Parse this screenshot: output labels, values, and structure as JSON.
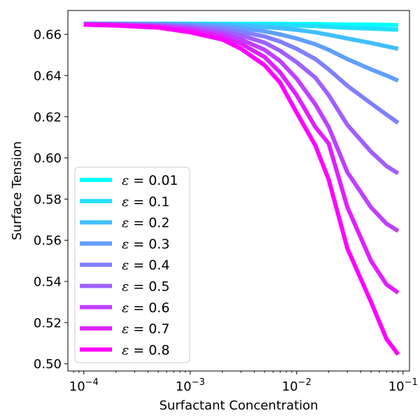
{
  "chart_data": {
    "type": "line",
    "title": "",
    "xlabel": "Surfactant Concentration",
    "ylabel": "Surface Tension",
    "xscale": "log",
    "xlim": [
      7.08e-05,
      0.115
    ],
    "ylim": [
      0.4965,
      0.6716
    ],
    "x_ticks": [
      {
        "value": 0.0001,
        "base": "10",
        "exp": "−4"
      },
      {
        "value": 0.001,
        "base": "10",
        "exp": "−3"
      },
      {
        "value": 0.01,
        "base": "10",
        "exp": "−2"
      },
      {
        "value": 0.1,
        "base": "10",
        "exp": "−1"
      }
    ],
    "y_ticks": [
      {
        "value": 0.5,
        "label": "0.50"
      },
      {
        "value": 0.52,
        "label": "0.52"
      },
      {
        "value": 0.54,
        "label": "0.54"
      },
      {
        "value": 0.56,
        "label": "0.56"
      },
      {
        "value": 0.58,
        "label": "0.58"
      },
      {
        "value": 0.6,
        "label": "0.60"
      },
      {
        "value": 0.62,
        "label": "0.62"
      },
      {
        "value": 0.64,
        "label": "0.64"
      },
      {
        "value": 0.66,
        "label": "0.66"
      }
    ],
    "grid": false,
    "legend_position": "lower-left",
    "x": [
      0.0001,
      0.0002,
      0.0005,
      0.001,
      0.002,
      0.003,
      0.005,
      0.007,
      0.01,
      0.015,
      0.02,
      0.03,
      0.05,
      0.07,
      0.09
    ],
    "series": [
      {
        "name": "ε = 0.01",
        "label_symbol": "ε",
        "label_value": " = 0.01",
        "color": "#00ffff",
        "values": [
          0.6652,
          0.6652,
          0.6652,
          0.6652,
          0.6651,
          0.6651,
          0.6651,
          0.6651,
          0.665,
          0.665,
          0.6649,
          0.6648,
          0.6647,
          0.6646,
          0.6645
        ]
      },
      {
        "name": "ε = 0.1",
        "label_symbol": "ε",
        "label_value": " = 0.1",
        "color": "#20dfff",
        "values": [
          0.6652,
          0.6652,
          0.6652,
          0.6651,
          0.665,
          0.6649,
          0.6647,
          0.6645,
          0.6643,
          0.664,
          0.6637,
          0.6632,
          0.6628,
          0.6625,
          0.6623
        ]
      },
      {
        "name": "ε = 0.2",
        "label_symbol": "ε",
        "label_value": " = 0.2",
        "color": "#40bfff",
        "values": [
          0.6652,
          0.6652,
          0.6651,
          0.6649,
          0.6646,
          0.6642,
          0.6636,
          0.663,
          0.6622,
          0.661,
          0.6598,
          0.658,
          0.6558,
          0.6542,
          0.653
        ]
      },
      {
        "name": "ε = 0.3",
        "label_symbol": "ε",
        "label_value": " = 0.3",
        "color": "#609fff",
        "values": [
          0.6651,
          0.6651,
          0.6649,
          0.6646,
          0.6638,
          0.663,
          0.6615,
          0.66,
          0.658,
          0.6552,
          0.6525,
          0.648,
          0.643,
          0.64,
          0.6375
        ]
      },
      {
        "name": "ε = 0.4",
        "label_symbol": "ε",
        "label_value": " = 0.4",
        "color": "#7f80ff",
        "values": [
          0.665,
          0.6649,
          0.6646,
          0.664,
          0.6628,
          0.6612,
          0.659,
          0.6565,
          0.653,
          0.648,
          0.643,
          0.635,
          0.6265,
          0.621,
          0.617
        ]
      },
      {
        "name": "ε = 0.5",
        "label_symbol": "ε",
        "label_value": " = 0.5",
        "color": "#9f60ff",
        "values": [
          0.6649,
          0.6648,
          0.6643,
          0.6635,
          0.6615,
          0.6595,
          0.656,
          0.652,
          0.6465,
          0.639,
          0.6305,
          0.616,
          0.603,
          0.596,
          0.5925
        ]
      },
      {
        "name": "ε = 0.6",
        "label_symbol": "ε",
        "label_value": " = 0.6",
        "color": "#bf40ff",
        "values": [
          0.6649,
          0.6646,
          0.664,
          0.6628,
          0.6602,
          0.6575,
          0.6525,
          0.647,
          0.6385,
          0.626,
          0.615,
          0.593,
          0.576,
          0.568,
          0.5645
        ]
      },
      {
        "name": "ε = 0.7",
        "label_symbol": "ε",
        "label_value": " = 0.7",
        "color": "#df20ff",
        "values": [
          0.6648,
          0.6645,
          0.6637,
          0.662,
          0.659,
          0.6555,
          0.649,
          0.6415,
          0.6305,
          0.615,
          0.607,
          0.576,
          0.55,
          0.5385,
          0.5345
        ]
      },
      {
        "name": "ε = 0.8",
        "label_symbol": "ε",
        "label_value": " = 0.8",
        "color": "#ff00ff",
        "values": [
          0.6647,
          0.6643,
          0.6633,
          0.661,
          0.6575,
          0.653,
          0.645,
          0.6365,
          0.622,
          0.606,
          0.5895,
          0.556,
          0.53,
          0.512,
          0.5045
        ]
      }
    ]
  }
}
